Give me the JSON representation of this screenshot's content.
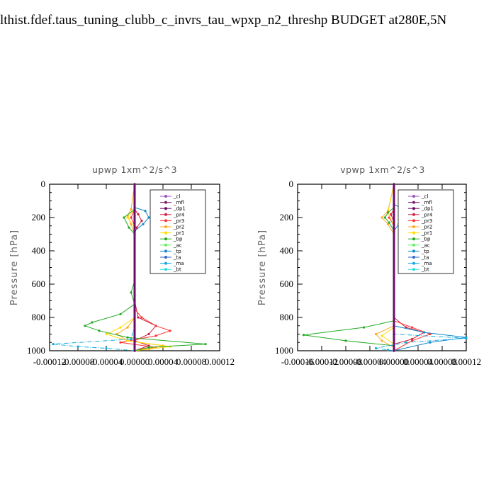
{
  "header": {
    "title": "lthist.fdef.taus_tuning_clubb_c_invrs_tau_wpxp_n2_threshp  BUDGET at280E,5N"
  },
  "colors": {
    "_cl": "#9955bb",
    "_mfl": "#7a1f6e",
    "_dp1": "#6a0d6a",
    "_pr4": "#cc2244",
    "_pr3": "#ff3333",
    "_pr2": "#ffaa22",
    "_pr1": "#ffdd00",
    "_bp": "#22aa22",
    "_ac": "#66ee66",
    "_tp": "#1188cc",
    "_ta": "#3366cc",
    "_ma": "#11aadd",
    "_bt": "#22dddd"
  },
  "chart_data": [
    {
      "type": "line",
      "title": "upwp   1xm^2/s^3",
      "ylabel": "Pressure [hPa]",
      "xlim": [
        -0.00012,
        0.00012
      ],
      "ylim": [
        1000,
        0
      ],
      "x_ticks": [
        "-0.00012",
        "-0.00008",
        "-0.00004",
        "0.00000",
        "0.00004",
        "0.00008",
        "0.00012"
      ],
      "y_ticks": [
        "0",
        "200",
        "400",
        "600",
        "800",
        "1000"
      ],
      "legend": [
        "_cl",
        "_mfl",
        "_dp1",
        "_pr4",
        "_pr3",
        "_pr2",
        "_pr1",
        "_bp",
        "_ac",
        "_tp",
        "_ta",
        "_ma",
        "_bt"
      ],
      "legend_position": "top-right",
      "series": [
        {
          "name": "_pr4",
          "points": [
            [
              0,
              0
            ],
            [
              0,
              150
            ],
            [
              5e-06,
              180
            ],
            [
              1e-05,
              220
            ],
            [
              3e-06,
              260
            ],
            [
              0,
              300
            ],
            [
              0,
              700
            ],
            [
              5e-06,
              800
            ],
            [
              3e-05,
              850
            ],
            [
              2e-05,
              900
            ],
            [
              0,
              940
            ],
            [
              2e-05,
              970
            ],
            [
              0,
              1000
            ]
          ]
        },
        {
          "name": "_pr3",
          "points": [
            [
              0,
              0
            ],
            [
              0,
              150
            ],
            [
              -5e-06,
              200
            ],
            [
              0,
              250
            ],
            [
              0,
              750
            ],
            [
              1e-05,
              800
            ],
            [
              3e-05,
              850
            ],
            [
              5e-05,
              880
            ],
            [
              3e-05,
              910
            ],
            [
              -2e-05,
              950
            ],
            [
              3e-05,
              980
            ],
            [
              0,
              1000
            ]
          ]
        },
        {
          "name": "_pr2",
          "points": [
            [
              0,
              0
            ],
            [
              -5e-06,
              150
            ],
            [
              -1e-05,
              190
            ],
            [
              -5e-06,
              240
            ],
            [
              0,
              300
            ],
            [
              0,
              800
            ],
            [
              -1e-05,
              860
            ],
            [
              -2.5e-05,
              900
            ],
            [
              -1e-05,
              940
            ],
            [
              4e-05,
              970
            ],
            [
              2e-05,
              990
            ],
            [
              0,
              1000
            ]
          ]
        },
        {
          "name": "_pr1",
          "points": [
            [
              0,
              0
            ],
            [
              0,
              150
            ],
            [
              -1e-05,
              200
            ],
            [
              0,
              260
            ],
            [
              0,
              800
            ],
            [
              -2e-05,
              860
            ],
            [
              -4e-05,
              900
            ],
            [
              -1e-05,
              940
            ],
            [
              5e-05,
              975
            ],
            [
              0,
              1000
            ]
          ]
        },
        {
          "name": "_bp",
          "points": [
            [
              0,
              0
            ],
            [
              0,
              150
            ],
            [
              -1.5e-05,
              200
            ],
            [
              -8e-06,
              260
            ],
            [
              0,
              300
            ],
            [
              0,
              580
            ],
            [
              -5e-06,
              650
            ],
            [
              0,
              720
            ],
            [
              -2e-05,
              780
            ],
            [
              -6e-05,
              830
            ],
            [
              -7e-05,
              850
            ],
            [
              -5e-05,
              880
            ],
            [
              -1e-05,
              920
            ],
            [
              0.0001,
              960
            ],
            [
              2e-05,
              980
            ],
            [
              0,
              1000
            ]
          ]
        },
        {
          "name": "_tp",
          "points": [
            [
              0,
              0
            ],
            [
              0,
              140
            ],
            [
              1.5e-05,
              160
            ],
            [
              2e-05,
              200
            ],
            [
              1.2e-05,
              240
            ],
            [
              0,
              280
            ],
            [
              0,
              1000
            ]
          ]
        },
        {
          "name": "_ma",
          "points": [
            [
              0,
              0
            ],
            [
              0,
              850
            ],
            [
              -5e-06,
              930
            ],
            [
              -0.000115,
              960
            ],
            [
              -8e-05,
              975
            ],
            [
              -4e-05,
              985
            ],
            [
              0,
              1000
            ]
          ]
        },
        {
          "name": "_cl",
          "points": [
            [
              0,
              0
            ],
            [
              0,
              1000
            ]
          ]
        },
        {
          "name": "_mfl",
          "points": [
            [
              0,
              0
            ],
            [
              0,
              1000
            ]
          ]
        },
        {
          "name": "_dp1",
          "points": [
            [
              0,
              0
            ],
            [
              0,
              1000
            ]
          ]
        }
      ]
    },
    {
      "type": "line",
      "title": "vpwp   1xm^2/s^3",
      "ylabel": "Pressure [hPa]",
      "xlim": [
        -0.00016,
        0.00012
      ],
      "ylim": [
        1000,
        0
      ],
      "x_ticks": [
        "-0.00016",
        "-0.00012",
        "-0.00008",
        "-0.00004",
        "0.00000",
        "0.00004",
        "0.00008",
        "0.00012"
      ],
      "y_ticks": [
        "0",
        "200",
        "400",
        "600",
        "800",
        "1000"
      ],
      "legend": [
        "_cl",
        "_mfl",
        "_dp1",
        "_pr4",
        "_pr3",
        "_pr2",
        "_pr1",
        "_bp",
        "_ac",
        "_tp",
        "_ta",
        "_ma",
        "_bt"
      ],
      "legend_position": "top-right",
      "series": [
        {
          "name": "_pr4",
          "points": [
            [
              0,
              0
            ],
            [
              0,
              150
            ],
            [
              -5e-06,
              180
            ],
            [
              0,
              230
            ],
            [
              0,
              800
            ],
            [
              2e-05,
              860
            ],
            [
              5e-05,
              890
            ],
            [
              3e-05,
              930
            ],
            [
              0,
              960
            ],
            [
              0,
              1000
            ]
          ]
        },
        {
          "name": "_pr3",
          "points": [
            [
              0,
              0
            ],
            [
              0,
              150
            ],
            [
              -8e-06,
              200
            ],
            [
              0,
              250
            ],
            [
              0,
              820
            ],
            [
              3e-05,
              860
            ],
            [
              6e-05,
              900
            ],
            [
              3e-05,
              940
            ],
            [
              0,
              1000
            ]
          ]
        },
        {
          "name": "_pr2",
          "points": [
            [
              0,
              0
            ],
            [
              -1e-05,
              160
            ],
            [
              -2e-05,
              200
            ],
            [
              -1e-05,
              240
            ],
            [
              0,
              300
            ],
            [
              0,
              850
            ],
            [
              -3e-05,
              900
            ],
            [
              -2e-05,
              940
            ],
            [
              0,
              980
            ],
            [
              0,
              1000
            ]
          ]
        },
        {
          "name": "_pr1",
          "points": [
            [
              0,
              0
            ],
            [
              -1e-05,
              170
            ],
            [
              0,
              250
            ],
            [
              0,
              860
            ],
            [
              -2e-05,
              910
            ],
            [
              0,
              960
            ],
            [
              0,
              1000
            ]
          ]
        },
        {
          "name": "_bp",
          "points": [
            [
              0,
              0
            ],
            [
              0,
              140
            ],
            [
              -1e-05,
              170
            ],
            [
              -1.5e-05,
              200
            ],
            [
              -8e-06,
              230
            ],
            [
              0,
              280
            ],
            [
              0,
              820
            ],
            [
              -5e-05,
              860
            ],
            [
              -0.00015,
              905
            ],
            [
              -8e-05,
              940
            ],
            [
              0,
              970
            ],
            [
              0,
              1000
            ]
          ]
        },
        {
          "name": "_tp",
          "points": [
            [
              0,
              0
            ],
            [
              0,
              120
            ],
            [
              1e-05,
              140
            ],
            [
              1.5e-05,
              200
            ],
            [
              8e-06,
              240
            ],
            [
              0,
              280
            ],
            [
              0,
              850
            ],
            [
              5e-05,
              890
            ],
            [
              0.00012,
              920
            ],
            [
              6e-05,
              950
            ],
            [
              0,
              1000
            ]
          ]
        },
        {
          "name": "_ma",
          "points": [
            [
              0,
              0
            ],
            [
              0,
              900
            ],
            [
              0.00012,
              925
            ],
            [
              2e-05,
              950
            ],
            [
              -3e-05,
              985
            ],
            [
              -1e-05,
              995
            ],
            [
              0,
              1000
            ]
          ]
        },
        {
          "name": "_cl",
          "points": [
            [
              0,
              0
            ],
            [
              0,
              1000
            ]
          ]
        },
        {
          "name": "_mfl",
          "points": [
            [
              0,
              0
            ],
            [
              0,
              1000
            ]
          ]
        },
        {
          "name": "_dp1",
          "points": [
            [
              0,
              0
            ],
            [
              0,
              1000
            ]
          ]
        }
      ]
    }
  ]
}
